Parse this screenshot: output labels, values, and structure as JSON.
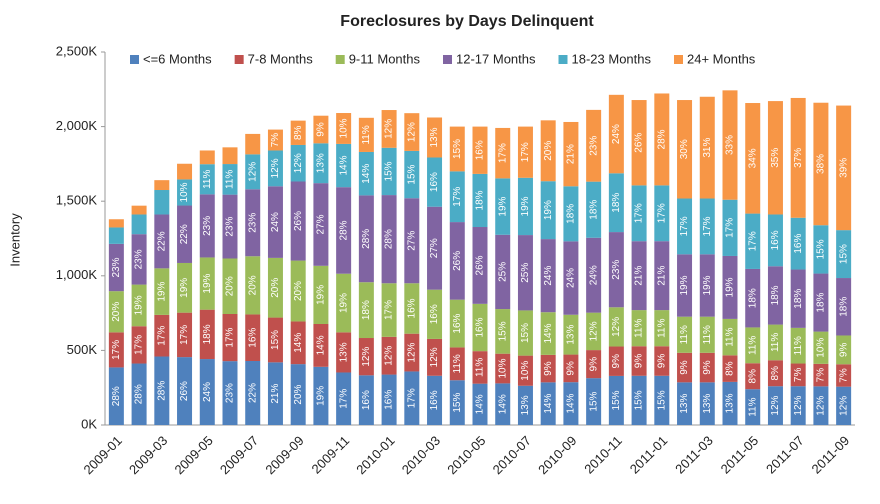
{
  "chart_data": {
    "type": "stacked_bar",
    "title": "Foreclosures by Days Delinquent",
    "y_label": "Inventory",
    "categories": [
      "2009-01",
      null,
      "2009-03",
      null,
      "2009-05",
      null,
      "2009-07",
      null,
      "2009-09",
      null,
      "2009-11",
      null,
      "2010-01",
      null,
      "2010-03",
      null,
      "2010-05",
      null,
      "2010-07",
      null,
      "2010-09",
      null,
      "2010-11",
      null,
      "2011-01",
      null,
      "2011-03",
      null,
      "2011-05",
      null,
      "2011-07",
      null,
      "2011-09"
    ],
    "ylim": [
      0,
      2500
    ],
    "yticks": [
      {
        "value": 0,
        "label": "0K"
      },
      {
        "value": 500,
        "label": "500K"
      },
      {
        "value": 1000,
        "label": "1,000K"
      },
      {
        "value": 1500,
        "label": "1,500K"
      },
      {
        "value": 2000,
        "label": "2,000K"
      },
      {
        "value": 2500,
        "label": "2,500K"
      }
    ],
    "grid": false,
    "legend": "top",
    "series": [
      {
        "name": "<=6 Months",
        "color": "#4f81bd",
        "values": [
          386,
          412,
          459,
          455,
          442,
          428,
          429,
          420,
          408,
          390,
          352,
          333,
          338,
          359,
          330,
          300,
          277,
          279,
          263,
          286,
          287,
          314,
          329,
          330,
          330,
          286,
          286,
          289,
          240,
          260,
          260,
          259,
          257
        ],
        "labels": [
          "28%",
          "28%",
          "28%",
          "26%",
          "24%",
          "23%",
          "22%",
          "21%",
          "20%",
          "19%",
          "17%",
          "16%",
          "16%",
          "17%",
          "16%",
          "15%",
          "14%",
          "14%",
          "13%",
          "14%",
          "14%",
          "15%",
          "15%",
          "15%",
          "15%",
          "13%",
          "13%",
          "13%",
          "11%",
          "12%",
          "12%",
          "12%",
          "12%"
        ]
      },
      {
        "name": "7-8 Months",
        "color": "#c0504d",
        "values": [
          235,
          250,
          279,
          298,
          331,
          316,
          312,
          300,
          286,
          287,
          269,
          250,
          253,
          253,
          247,
          220,
          218,
          199,
          202,
          184,
          185,
          188,
          197,
          198,
          198,
          198,
          198,
          178,
          174,
          174,
          152,
          151,
          150
        ],
        "labels": [
          "17%",
          "17%",
          "17%",
          "17%",
          "18%",
          "17%",
          "16%",
          "15%",
          "14%",
          "14%",
          "13%",
          "12%",
          "12%",
          "12%",
          "12%",
          "11%",
          "11%",
          "10%",
          "10%",
          "9%",
          "9%",
          "9%",
          "9%",
          "9%",
          "9%",
          "9%",
          "9%",
          "8%",
          "8%",
          "8%",
          "7%",
          "7%",
          "7%"
        ]
      },
      {
        "name": "9-11 Months",
        "color": "#9bbb59",
        "values": [
          276,
          279,
          312,
          333,
          350,
          372,
          390,
          400,
          408,
          390,
          393,
          374,
          359,
          338,
          330,
          320,
          317,
          299,
          303,
          286,
          267,
          251,
          263,
          242,
          242,
          242,
          242,
          244,
          240,
          239,
          239,
          216,
          193
        ],
        "labels": [
          "20%",
          "19%",
          "19%",
          "19%",
          "19%",
          "20%",
          "20%",
          "20%",
          "20%",
          "19%",
          "19%",
          "18%",
          "17%",
          "16%",
          "16%",
          "16%",
          "16%",
          "15%",
          "15%",
          "14%",
          "13%",
          "12%",
          "12%",
          "11%",
          "11%",
          "11%",
          "11%",
          "11%",
          "11%",
          "11%",
          "11%",
          "10%",
          "9%"
        ]
      },
      {
        "name": "12-17 Months",
        "color": "#8064a2",
        "values": [
          317,
          338,
          361,
          385,
          423,
          428,
          449,
          480,
          530,
          554,
          580,
          582,
          591,
          570,
          556,
          520,
          515,
          498,
          505,
          490,
          492,
          502,
          504,
          462,
          462,
          418,
          418,
          422,
          392,
          391,
          391,
          389,
          385
        ],
        "labels": [
          "23%",
          "23%",
          "22%",
          "22%",
          "23%",
          "23%",
          "23%",
          "24%",
          "26%",
          "27%",
          "28%",
          "28%",
          "28%",
          "27%",
          "27%",
          "26%",
          "26%",
          "25%",
          "25%",
          "24%",
          "24%",
          "24%",
          "23%",
          "21%",
          "21%",
          "19%",
          "19%",
          "19%",
          "18%",
          "18%",
          "18%",
          "18%",
          "18%"
        ]
      },
      {
        "name": "18-23 Months",
        "color": "#4bacc6",
        "values": [
          110,
          132,
          164,
          175,
          202,
          205,
          234,
          240,
          245,
          267,
          290,
          291,
          317,
          317,
          330,
          340,
          356,
          378,
          384,
          388,
          369,
          376,
          394,
          374,
          374,
          374,
          374,
          377,
          371,
          347,
          347,
          324,
          321
        ],
        "labels": [
          null,
          null,
          null,
          "10%",
          "11%",
          "11%",
          "12%",
          "12%",
          "12%",
          "13%",
          "14%",
          "14%",
          "15%",
          "15%",
          "16%",
          "17%",
          "18%",
          "19%",
          "19%",
          "19%",
          "18%",
          "18%",
          "18%",
          "17%",
          "17%",
          "17%",
          "17%",
          "17%",
          "17%",
          "16%",
          "16%",
          "15%",
          "15%"
        ]
      },
      {
        "name": "24+ Months",
        "color": "#f79646",
        "values": [
          55,
          59,
          66,
          105,
          92,
          112,
          137,
          140,
          163,
          185,
          207,
          229,
          253,
          253,
          268,
          300,
          317,
          338,
          343,
          408,
          431,
          481,
          526,
          572,
          616,
          660,
          682,
          733,
          741,
          760,
          803,
          821,
          835
        ],
        "labels": [
          null,
          null,
          null,
          null,
          null,
          null,
          null,
          "7%",
          "8%",
          "9%",
          "10%",
          "11%",
          "12%",
          "12%",
          "13%",
          "15%",
          "16%",
          "17%",
          "17%",
          "20%",
          "21%",
          "23%",
          "24%",
          "26%",
          "28%",
          "30%",
          "31%",
          "33%",
          "34%",
          "35%",
          "37%",
          "38%",
          "39%"
        ]
      }
    ]
  }
}
